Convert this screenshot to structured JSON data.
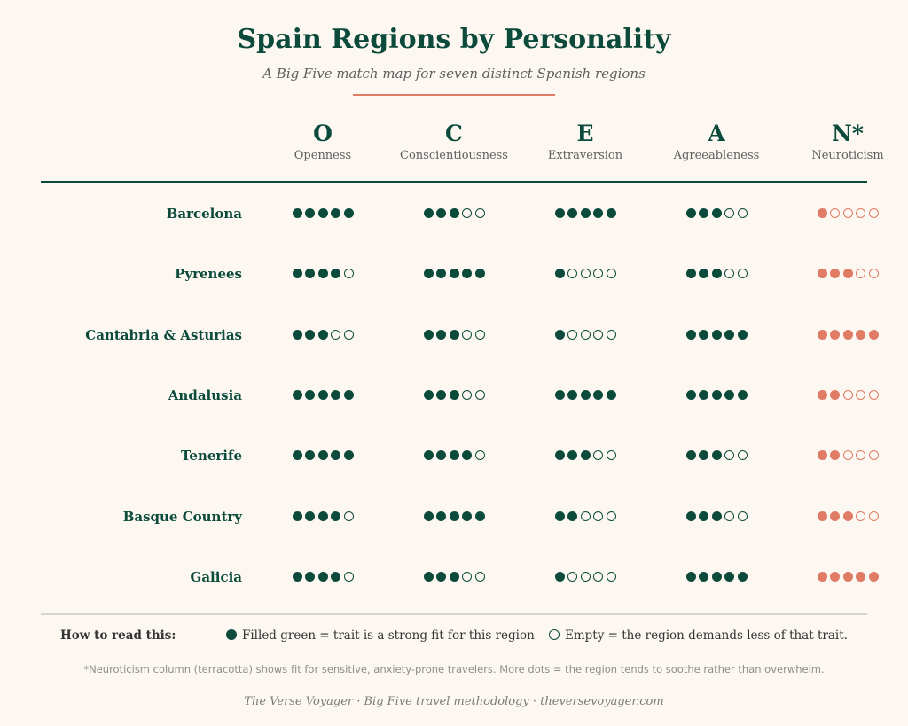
{
  "title": "Spain Regions by Personality",
  "subtitle": "A Big Five match map for seven distinct Spanish regions",
  "colors": {
    "primary": "#0c4a3c",
    "accent": "#e07b65",
    "background": "#fcf8f1"
  },
  "chart_data": {
    "type": "table",
    "title": "Spain Regions by Personality",
    "subtitle": "A Big Five match map for seven distinct Spanish regions",
    "max_dots": 5,
    "traits": [
      {
        "letter": "O",
        "name": "Openness"
      },
      {
        "letter": "C",
        "name": "Conscientiousness"
      },
      {
        "letter": "E",
        "name": "Extraversion"
      },
      {
        "letter": "A",
        "name": "Agreeableness"
      },
      {
        "letter": "N*",
        "name": "Neuroticism"
      }
    ],
    "regions": [
      {
        "name": "Barcelona",
        "scores": [
          5,
          3,
          5,
          3,
          1
        ]
      },
      {
        "name": "Pyrenees",
        "scores": [
          4,
          5,
          1,
          3,
          3
        ]
      },
      {
        "name": "Cantabria & Asturias",
        "scores": [
          3,
          3,
          1,
          5,
          5
        ]
      },
      {
        "name": "Andalusia",
        "scores": [
          5,
          3,
          5,
          5,
          2
        ]
      },
      {
        "name": "Tenerife",
        "scores": [
          5,
          4,
          3,
          3,
          2
        ]
      },
      {
        "name": "Basque Country",
        "scores": [
          4,
          5,
          2,
          3,
          3
        ]
      },
      {
        "name": "Galicia",
        "scores": [
          4,
          3,
          1,
          5,
          5
        ]
      }
    ]
  },
  "legend": {
    "heading": "How to read this:",
    "filled": "Filled green = trait is a strong fit for this region",
    "empty": "Empty = the region demands less of that trait."
  },
  "footnote": "*Neuroticism column (terracotta) shows fit for sensitive, anxiety-prone travelers. More dots = the region tends to soothe rather than overwhelm.",
  "credit": "The Verse Voyager · Big Five travel methodology · theversevoyager.com"
}
